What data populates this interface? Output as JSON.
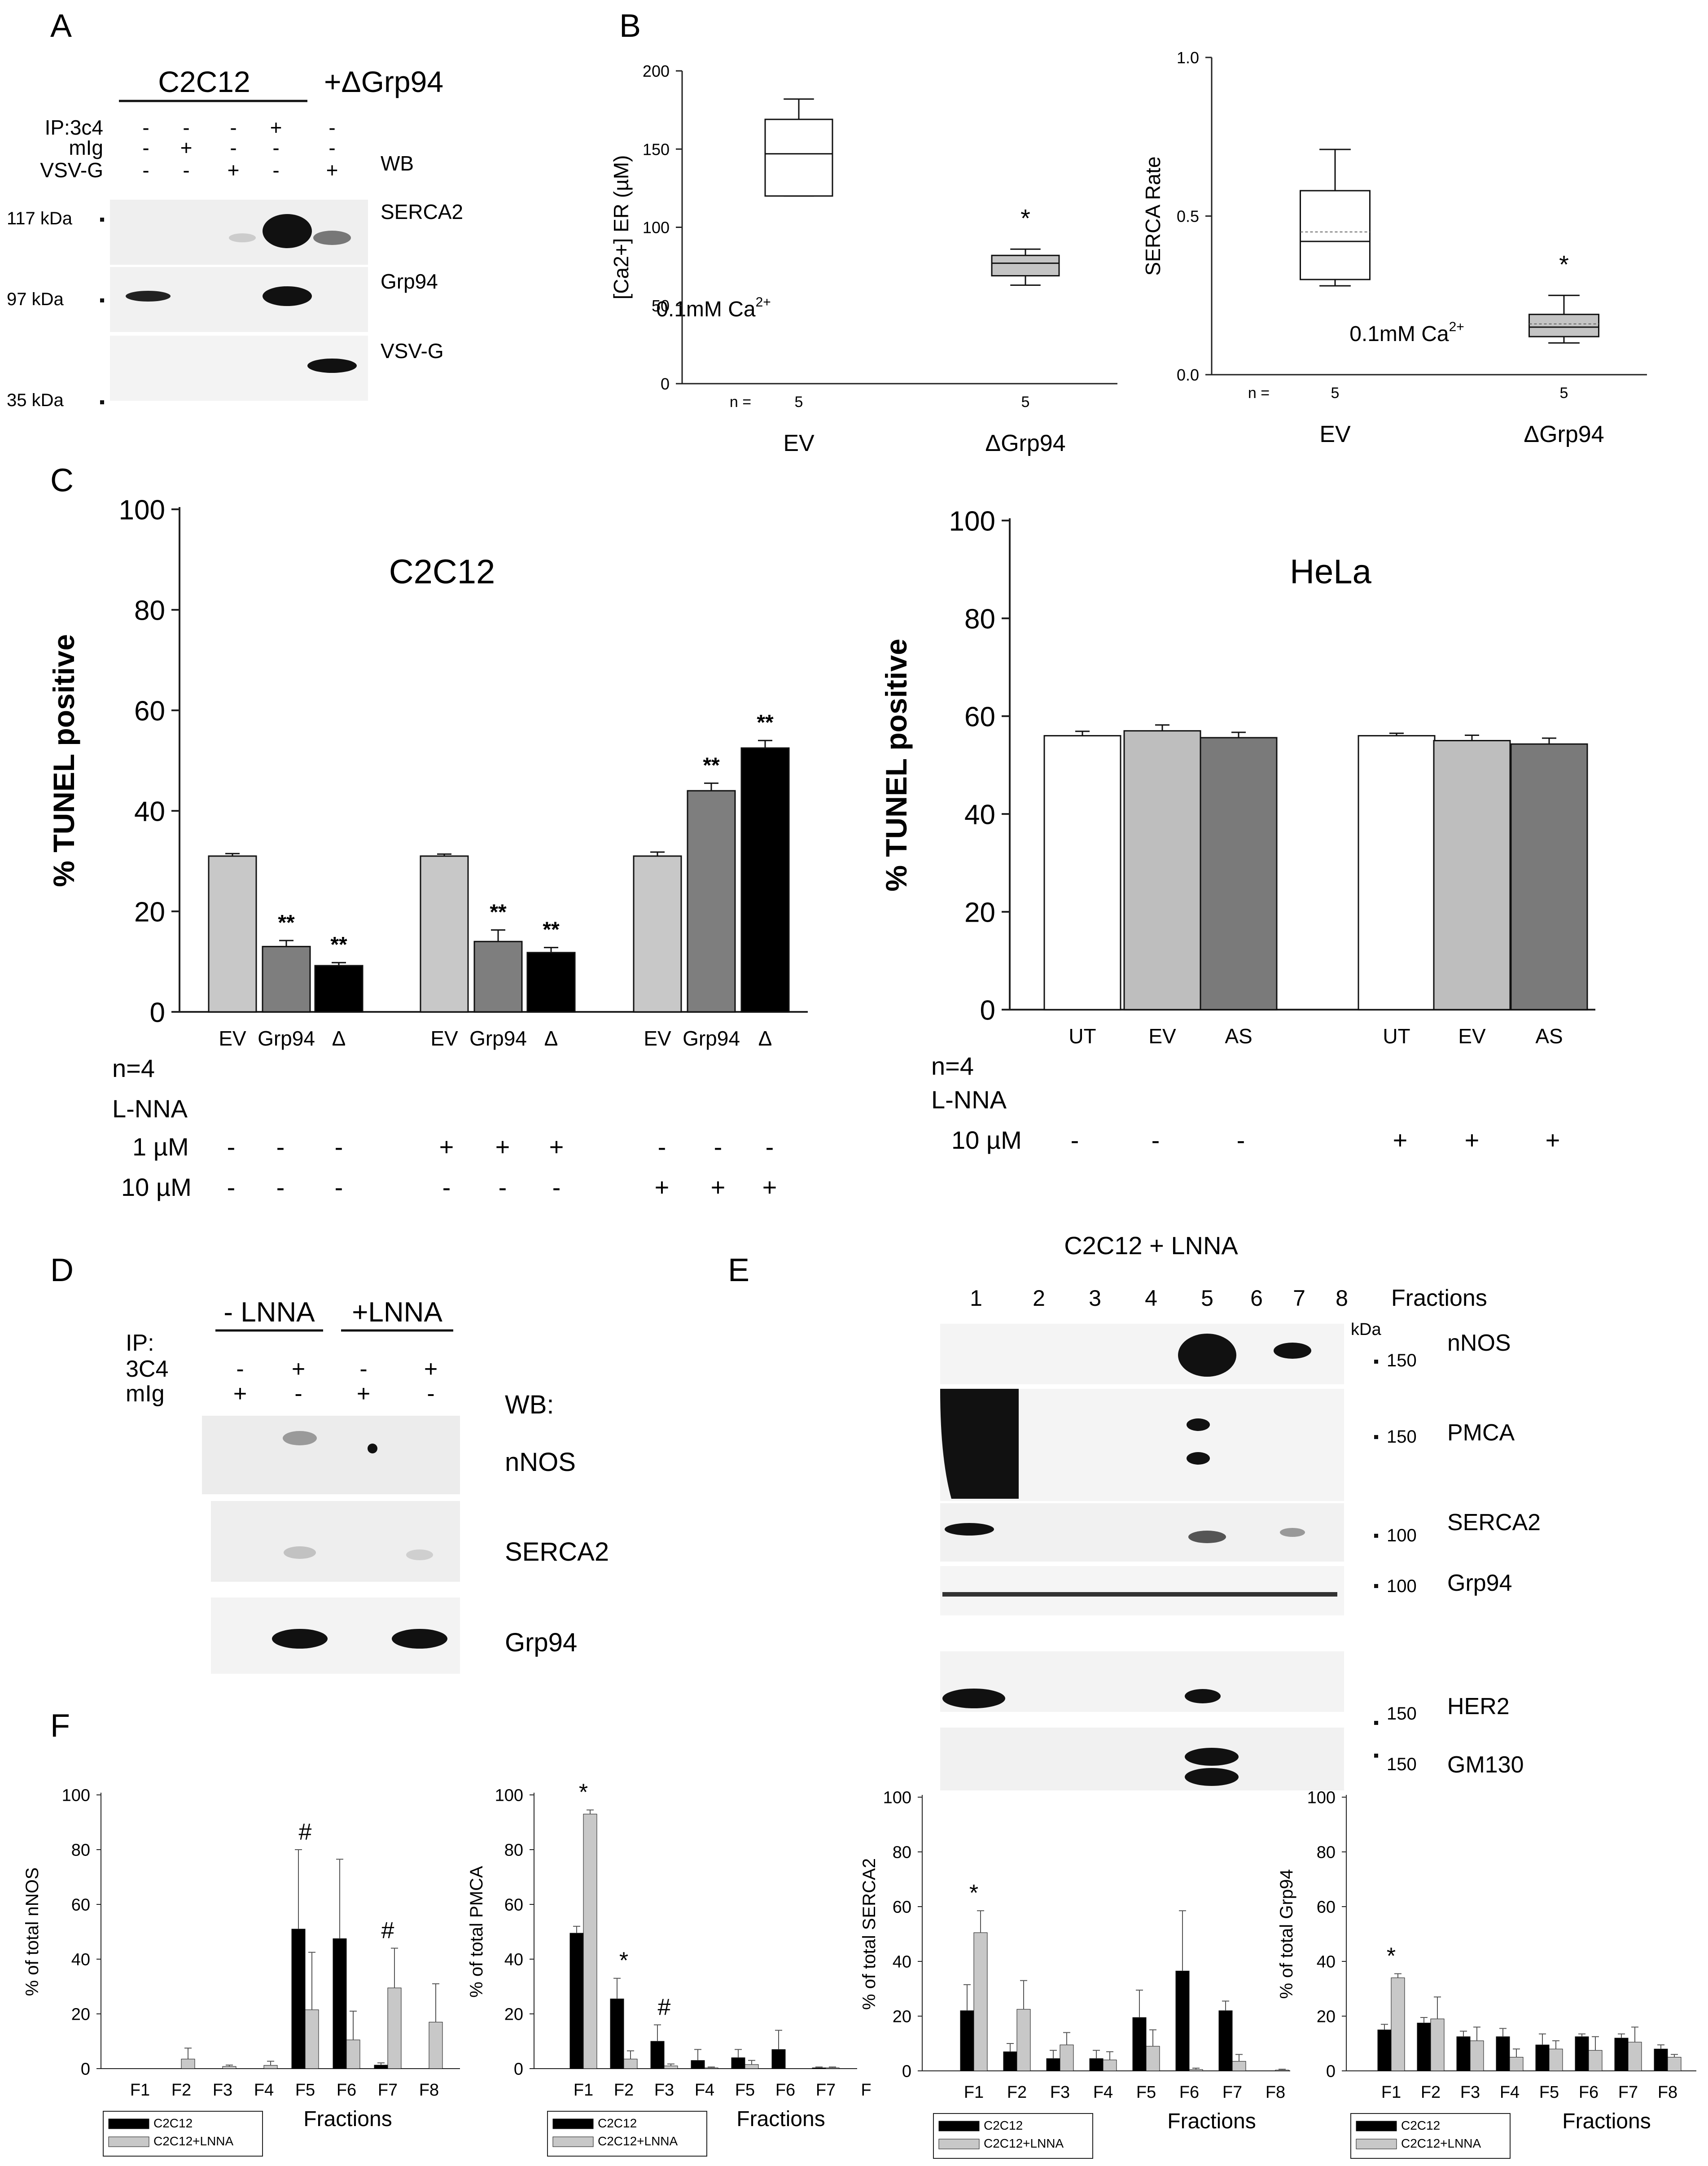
{
  "panel_labels": {
    "a": "A",
    "b": "B",
    "c": "C",
    "d": "D",
    "e": "E",
    "f": "F"
  },
  "panel_a": {
    "group_c2c12": "C2C12",
    "group_dgrp94": "+ΔGrp94",
    "row_labels": [
      "IP:3c4",
      "mIg",
      "VSV-G"
    ],
    "signs": [
      [
        "-",
        "-",
        "-",
        "+",
        "-"
      ],
      [
        "-",
        "+",
        "-",
        "-",
        "-"
      ],
      [
        "-",
        "-",
        "+",
        "-",
        "+"
      ]
    ],
    "wb": "WB",
    "bands": [
      "SERCA2",
      "Grp94",
      "VSV-G"
    ],
    "markers": [
      "117 kDa",
      "97 kDa",
      "35 kDa"
    ]
  },
  "panel_b": {
    "n_label": "n =",
    "note_left": "0.1mM Ca",
    "note_sup": "2+",
    "star": "*"
  },
  "panel_c": {
    "n_label": "n=4",
    "drug": "L-NNA",
    "dose1": "1 µM",
    "dose2": "10 µM",
    "c2c12_dose1_signs": [
      "-",
      "-",
      "-",
      "+",
      "+",
      "+",
      "-",
      "-",
      "-"
    ],
    "c2c12_dose2_signs": [
      "-",
      "-",
      "-",
      "-",
      "-",
      "-",
      "+",
      "+",
      "+"
    ],
    "hela_dose_signs": [
      "-",
      "-",
      "-",
      "+",
      "+",
      "+"
    ],
    "sig_mark": "**"
  },
  "panel_d": {
    "group_minus": "- LNNA",
    "group_plus": "+LNNA",
    "row_labels": [
      "IP:",
      "3C4",
      "mIg"
    ],
    "signs": [
      [
        "-",
        "+",
        "-",
        "+"
      ],
      [
        "+",
        "-",
        "+",
        "-"
      ]
    ],
    "wb": "WB:",
    "bands": [
      "nNOS",
      "SERCA2",
      "Grp94"
    ]
  },
  "panel_e": {
    "title": "C2C12 + LNNA",
    "fractions": [
      "1",
      "2",
      "3",
      "4",
      "5",
      "6",
      "7",
      "8"
    ],
    "fractions_label": "Fractions",
    "kda": "kDa",
    "markers": [
      "150",
      "150",
      "100",
      "100",
      "150",
      "150"
    ],
    "bands": [
      "nNOS",
      "PMCA",
      "SERCA2",
      "Grp94",
      "HER2",
      "GM130"
    ]
  },
  "chart_data": [
    {
      "id": "b1",
      "type": "box",
      "ylabel": "[Ca2+] ER (µM)",
      "ylim": [
        0,
        200
      ],
      "yticks": [
        0,
        50,
        100,
        150,
        200
      ],
      "categories": [
        "EV",
        "ΔGrp94"
      ],
      "n": [
        "5",
        "5"
      ],
      "boxes": [
        {
          "whislo": 120,
          "q1": 120,
          "med": 147,
          "q3": 169,
          "whishi": 182
        },
        {
          "whislo": 63,
          "q1": 69,
          "med": 77,
          "q3": 82,
          "whishi": 86
        }
      ]
    },
    {
      "id": "b2",
      "type": "box",
      "ylabel": "SERCA Rate",
      "ylim": [
        0,
        1.0
      ],
      "yticks": [
        "0.0",
        "0.5",
        "1.0"
      ],
      "categories": [
        "EV",
        "ΔGrp94"
      ],
      "n": [
        "5",
        "5"
      ],
      "boxes": [
        {
          "whislo": 0.28,
          "q1": 0.3,
          "med": 0.42,
          "q3": 0.58,
          "whishi": 0.71,
          "mean": 0.45
        },
        {
          "whislo": 0.1,
          "q1": 0.12,
          "med": 0.15,
          "q3": 0.19,
          "whishi": 0.25,
          "mean": 0.16
        }
      ]
    },
    {
      "id": "c1",
      "type": "bar",
      "title": "C2C12",
      "ylabel": "% TUNEL positive",
      "ylim": [
        0,
        100
      ],
      "yticks": [
        0,
        20,
        40,
        60,
        80,
        100
      ],
      "categories": [
        "EV",
        "Grp94",
        "Δ",
        "EV",
        "Grp94",
        "Δ",
        "EV",
        "Grp94",
        "Δ"
      ],
      "values": [
        31,
        13,
        9.2,
        31,
        14,
        11.8,
        31,
        44,
        52.5
      ],
      "errors": [
        0.5,
        1.2,
        0.6,
        0.4,
        2.3,
        1.0,
        0.8,
        1.5,
        1.5
      ],
      "sig": [
        "",
        "**",
        "**",
        "",
        "**",
        "**",
        "",
        "**",
        "**"
      ],
      "colors": [
        "#c8c8c8",
        "#7e7e7e",
        "#000000",
        "#c8c8c8",
        "#7e7e7e",
        "#000000",
        "#c8c8c8",
        "#7e7e7e",
        "#000000"
      ]
    },
    {
      "id": "c2",
      "type": "bar",
      "title": "HeLa",
      "ylabel": "% TUNEL positive",
      "ylim": [
        0,
        100
      ],
      "yticks": [
        0,
        20,
        40,
        60,
        80,
        100
      ],
      "categories": [
        "UT",
        "EV",
        "AS",
        "UT",
        "EV",
        "AS"
      ],
      "values": [
        56,
        57,
        55.6,
        56,
        55,
        54.3
      ],
      "errors": [
        0.9,
        1.2,
        1.1,
        0.5,
        1.1,
        1.2
      ],
      "colors": [
        "#ffffff",
        "#bebebe",
        "#7a7a7a",
        "#ffffff",
        "#bebebe",
        "#7a7a7a"
      ]
    },
    {
      "id": "f1",
      "type": "bar",
      "ylabel": "% of total nNOS",
      "xlabel": "Fractions",
      "ylim": [
        0,
        100
      ],
      "yticks": [
        0,
        20,
        40,
        60,
        80,
        100
      ],
      "categories": [
        "F1",
        "F2",
        "F3",
        "F4",
        "F5",
        "F6",
        "F7",
        "F8"
      ],
      "series": [
        {
          "name": "C2C12",
          "values": [
            0,
            0,
            0,
            0,
            51,
            47.5,
            1.3,
            0
          ],
          "errors": [
            0,
            0,
            0,
            0,
            29,
            29,
            0.8,
            0
          ]
        },
        {
          "name": "C2C12+LNNA",
          "values": [
            0,
            3.5,
            0.8,
            1.2,
            21.5,
            10.5,
            29.5,
            17
          ],
          "errors": [
            0,
            4,
            0.5,
            1.5,
            21,
            10.5,
            14.5,
            14
          ]
        }
      ],
      "sig": [
        "",
        "",
        "",
        "",
        "#",
        "",
        "#",
        ""
      ]
    },
    {
      "id": "f2",
      "type": "bar",
      "ylabel": "% of total PMCA",
      "xlabel": "Fractions",
      "ylim": [
        0,
        100
      ],
      "yticks": [
        0,
        20,
        40,
        60,
        80,
        100
      ],
      "categories": [
        "F1",
        "F2",
        "F3",
        "F4",
        "F5",
        "F6",
        "F7",
        "F"
      ],
      "series": [
        {
          "name": "C2C12",
          "values": [
            49.5,
            25.5,
            10,
            3,
            4,
            7,
            0.3,
            0
          ],
          "errors": [
            2.5,
            7.5,
            6,
            4,
            3,
            7,
            0.3,
            0
          ]
        },
        {
          "name": "C2C12+LNNA",
          "values": [
            93,
            3.5,
            1,
            0.3,
            1.5,
            0,
            0.3,
            0
          ],
          "errors": [
            1.5,
            3,
            0.7,
            0.3,
            1.5,
            0,
            0.3,
            0
          ]
        }
      ],
      "sig": [
        "*",
        "*",
        "#",
        "",
        "",
        "",
        "",
        ""
      ]
    },
    {
      "id": "f3",
      "type": "bar",
      "ylabel": "% of total SERCA2",
      "xlabel": "Fractions",
      "ylim": [
        0,
        100
      ],
      "yticks": [
        0,
        20,
        40,
        60,
        80,
        100
      ],
      "categories": [
        "F1",
        "F2",
        "F3",
        "F4",
        "F5",
        "F6",
        "F7",
        "F8"
      ],
      "series": [
        {
          "name": "C2C12",
          "values": [
            22,
            7,
            4.5,
            4.5,
            19.5,
            36.5,
            22,
            0
          ],
          "errors": [
            9.5,
            3,
            3,
            3,
            10,
            22,
            3.5,
            0
          ]
        },
        {
          "name": "C2C12+LNNA",
          "values": [
            50.5,
            22.5,
            9.5,
            4,
            9,
            0.5,
            3.5,
            0.3
          ],
          "errors": [
            8,
            10.5,
            4.5,
            3,
            6,
            0.5,
            2.5,
            0.3
          ]
        }
      ],
      "sig": [
        "*",
        "",
        "",
        "",
        "",
        "",
        "",
        ""
      ]
    },
    {
      "id": "f4",
      "type": "bar",
      "ylabel": "% of total Grp94",
      "xlabel": "Fractions",
      "ylim": [
        0,
        100
      ],
      "yticks": [
        0,
        20,
        40,
        60,
        80,
        100
      ],
      "categories": [
        "F1",
        "F2",
        "F3",
        "F4",
        "F5",
        "F6",
        "F7",
        "F8"
      ],
      "series": [
        {
          "name": "C2C12",
          "values": [
            15,
            17.5,
            12.5,
            12.5,
            9.5,
            12.5,
            12,
            8
          ],
          "errors": [
            2,
            2,
            2,
            3,
            4,
            1,
            1.5,
            1.5
          ]
        },
        {
          "name": "C2C12+LNNA",
          "values": [
            34,
            19,
            11,
            5,
            8,
            7.5,
            10.5,
            5
          ],
          "errors": [
            1.5,
            8,
            5,
            3,
            3,
            5,
            5.5,
            1
          ]
        }
      ],
      "sig": [
        "*",
        "",
        "",
        "",
        "",
        "",
        "",
        ""
      ]
    }
  ]
}
